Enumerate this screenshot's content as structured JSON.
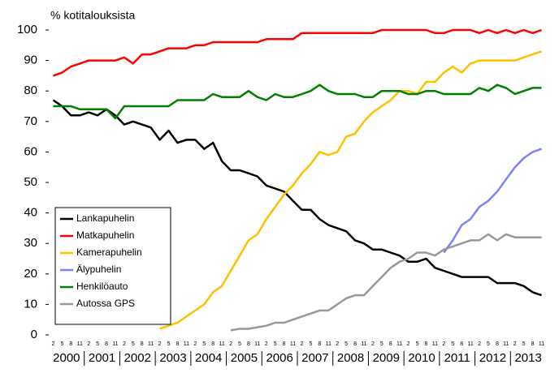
{
  "chart_data": {
    "type": "line",
    "title": "% kotitalouksista",
    "categories": [
      "2",
      "5",
      "8",
      "11",
      "2",
      "5",
      "8",
      "11",
      "2",
      "5",
      "8",
      "11",
      "2",
      "5",
      "8",
      "11",
      "2",
      "5",
      "8",
      "11",
      "2",
      "5",
      "8",
      "11",
      "2",
      "5",
      "8",
      "11",
      "2",
      "5",
      "8",
      "11",
      "2",
      "5",
      "8",
      "11",
      "2",
      "5",
      "8",
      "11",
      "2",
      "5",
      "8",
      "11",
      "2",
      "5",
      "8",
      "11",
      "2",
      "5",
      "8",
      "11",
      "2",
      "5",
      "8",
      "11"
    ],
    "years": [
      "2000",
      "2001",
      "2002",
      "2003",
      "2004",
      "2005",
      "2006",
      "2007",
      "2008",
      "2009",
      "2010",
      "2011",
      "2012",
      "2013"
    ],
    "ylim": [
      0,
      100
    ],
    "yticks": [
      0,
      10,
      20,
      30,
      40,
      50,
      60,
      70,
      80,
      90,
      100
    ],
    "grid": false,
    "legend": "lower left",
    "series": [
      {
        "name": "Lankapuhelin",
        "color": "#000000",
        "values": [
          77,
          75,
          72,
          72,
          73,
          72,
          74,
          72,
          69,
          70,
          69,
          68,
          64,
          67,
          63,
          64,
          64,
          61,
          63,
          57,
          54,
          54,
          53,
          52,
          49,
          48,
          47,
          44,
          41,
          41,
          38,
          36,
          35,
          34,
          31,
          30,
          28,
          28,
          27,
          26,
          24,
          24,
          25,
          22,
          21,
          20,
          19,
          19,
          19,
          19,
          17,
          17,
          17,
          16,
          14,
          13
        ]
      },
      {
        "name": "Matkapuhelin",
        "color": "#ff0000",
        "values": [
          85,
          86,
          88,
          89,
          90,
          90,
          90,
          90,
          91,
          89,
          92,
          92,
          93,
          94,
          94,
          94,
          95,
          95,
          96,
          96,
          96,
          96,
          96,
          96,
          97,
          97,
          97,
          97,
          99,
          99,
          99,
          99,
          99,
          99,
          99,
          99,
          99,
          100,
          100,
          100,
          100,
          100,
          100,
          99,
          99,
          100,
          100,
          100,
          99,
          100,
          99,
          100,
          99,
          100,
          99,
          100
        ]
      },
      {
        "name": "Kamerapuhelin",
        "color": "#ffc000",
        "values": [
          null,
          null,
          null,
          null,
          null,
          null,
          null,
          null,
          null,
          null,
          null,
          null,
          2,
          3,
          4,
          6,
          8,
          10,
          14,
          16,
          21,
          26,
          31,
          33,
          38,
          42,
          46,
          49,
          53,
          56,
          60,
          59,
          60,
          65,
          66,
          70,
          73,
          75,
          77,
          80,
          80,
          79,
          83,
          83,
          86,
          88,
          86,
          89,
          90,
          90,
          90,
          90,
          90,
          91,
          92,
          93
        ]
      },
      {
        "name": "Älypuhelin",
        "color": "#8080ff",
        "values": [
          null,
          null,
          null,
          null,
          null,
          null,
          null,
          null,
          null,
          null,
          null,
          null,
          null,
          null,
          null,
          null,
          null,
          null,
          null,
          null,
          null,
          null,
          null,
          null,
          null,
          null,
          null,
          null,
          null,
          null,
          null,
          null,
          null,
          null,
          null,
          null,
          null,
          null,
          null,
          null,
          null,
          null,
          null,
          null,
          27,
          31,
          36,
          38,
          42,
          44,
          47,
          51,
          55,
          58,
          60,
          61
        ]
      },
      {
        "name": "Henkilöauto",
        "color": "#008000",
        "values": [
          75,
          75,
          75,
          74,
          74,
          74,
          74,
          71,
          75,
          75,
          75,
          75,
          75,
          75,
          77,
          77,
          77,
          77,
          79,
          78,
          78,
          78,
          80,
          78,
          77,
          79,
          78,
          78,
          79,
          80,
          82,
          80,
          79,
          79,
          79,
          78,
          78,
          80,
          80,
          80,
          79,
          79,
          80,
          80,
          79,
          79,
          79,
          79,
          81,
          80,
          82,
          81,
          79,
          80,
          81,
          81
        ]
      },
      {
        "name": "Autossa GPS",
        "color": "#999999",
        "values": [
          null,
          null,
          null,
          null,
          null,
          null,
          null,
          null,
          null,
          null,
          null,
          null,
          null,
          null,
          null,
          null,
          null,
          null,
          null,
          null,
          1.5,
          2,
          2,
          2.5,
          3,
          4,
          4,
          5,
          6,
          7,
          8,
          8,
          10,
          12,
          13,
          13,
          16,
          19,
          22,
          24,
          25,
          27,
          27,
          26,
          28,
          29,
          30,
          31,
          31,
          33,
          31,
          33,
          32,
          32,
          32,
          32
        ]
      }
    ]
  }
}
